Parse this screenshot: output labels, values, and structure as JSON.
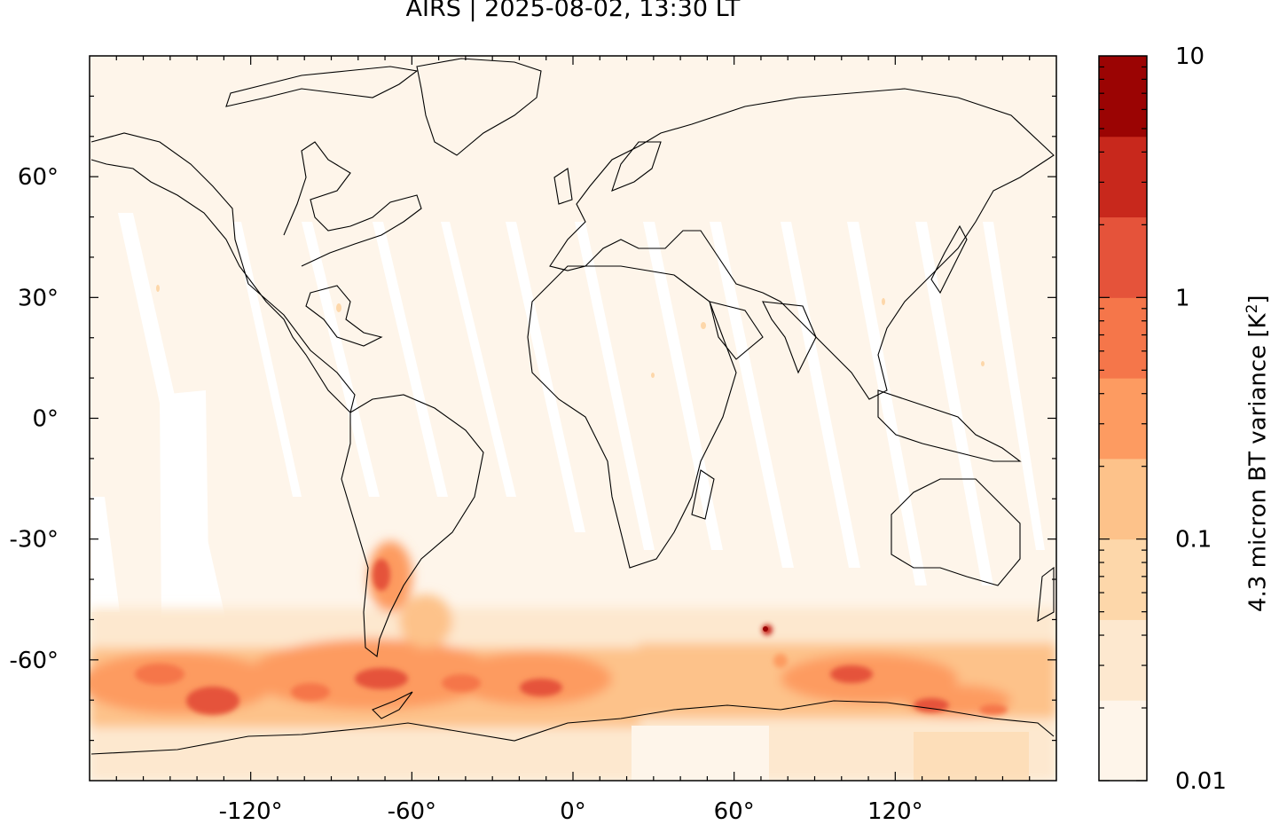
{
  "title": "AIRS | 2025-08-02, 13:30 LT",
  "map": {
    "projection": "plate carree",
    "lon_range": [
      -180,
      180
    ],
    "lat_range": [
      -90,
      90
    ],
    "lat_ticks": [
      {
        "value": 60,
        "label": "60°"
      },
      {
        "value": 30,
        "label": "30°"
      },
      {
        "value": 0,
        "label": "0°"
      },
      {
        "value": -30,
        "label": "-30°"
      },
      {
        "value": -60,
        "label": "-60°"
      }
    ],
    "lon_ticks": [
      {
        "value": -120,
        "label": "-120°"
      },
      {
        "value": -60,
        "label": "-60°"
      },
      {
        "value": 0,
        "label": "0°"
      },
      {
        "value": 60,
        "label": "60°"
      },
      {
        "value": 120,
        "label": "120°"
      }
    ],
    "background_color": "#fef5ea"
  },
  "colorbar": {
    "label_prefix": "4.3 micron BT variance [K",
    "label_sup": "2",
    "label_suffix": "]",
    "scale": "log",
    "range": [
      0.01,
      10
    ],
    "tick_labels": [
      {
        "value": 10,
        "label": "10"
      },
      {
        "value": 1,
        "label": "1"
      },
      {
        "value": 0.1,
        "label": "0.1"
      },
      {
        "value": 0.01,
        "label": "0.01"
      }
    ],
    "colors": [
      "#fef5ea",
      "#fde8cf",
      "#fdd7aa",
      "#fdc28a",
      "#fd9b61",
      "#f5764a",
      "#e5533a",
      "#c8281c",
      "#9b0403"
    ]
  }
}
